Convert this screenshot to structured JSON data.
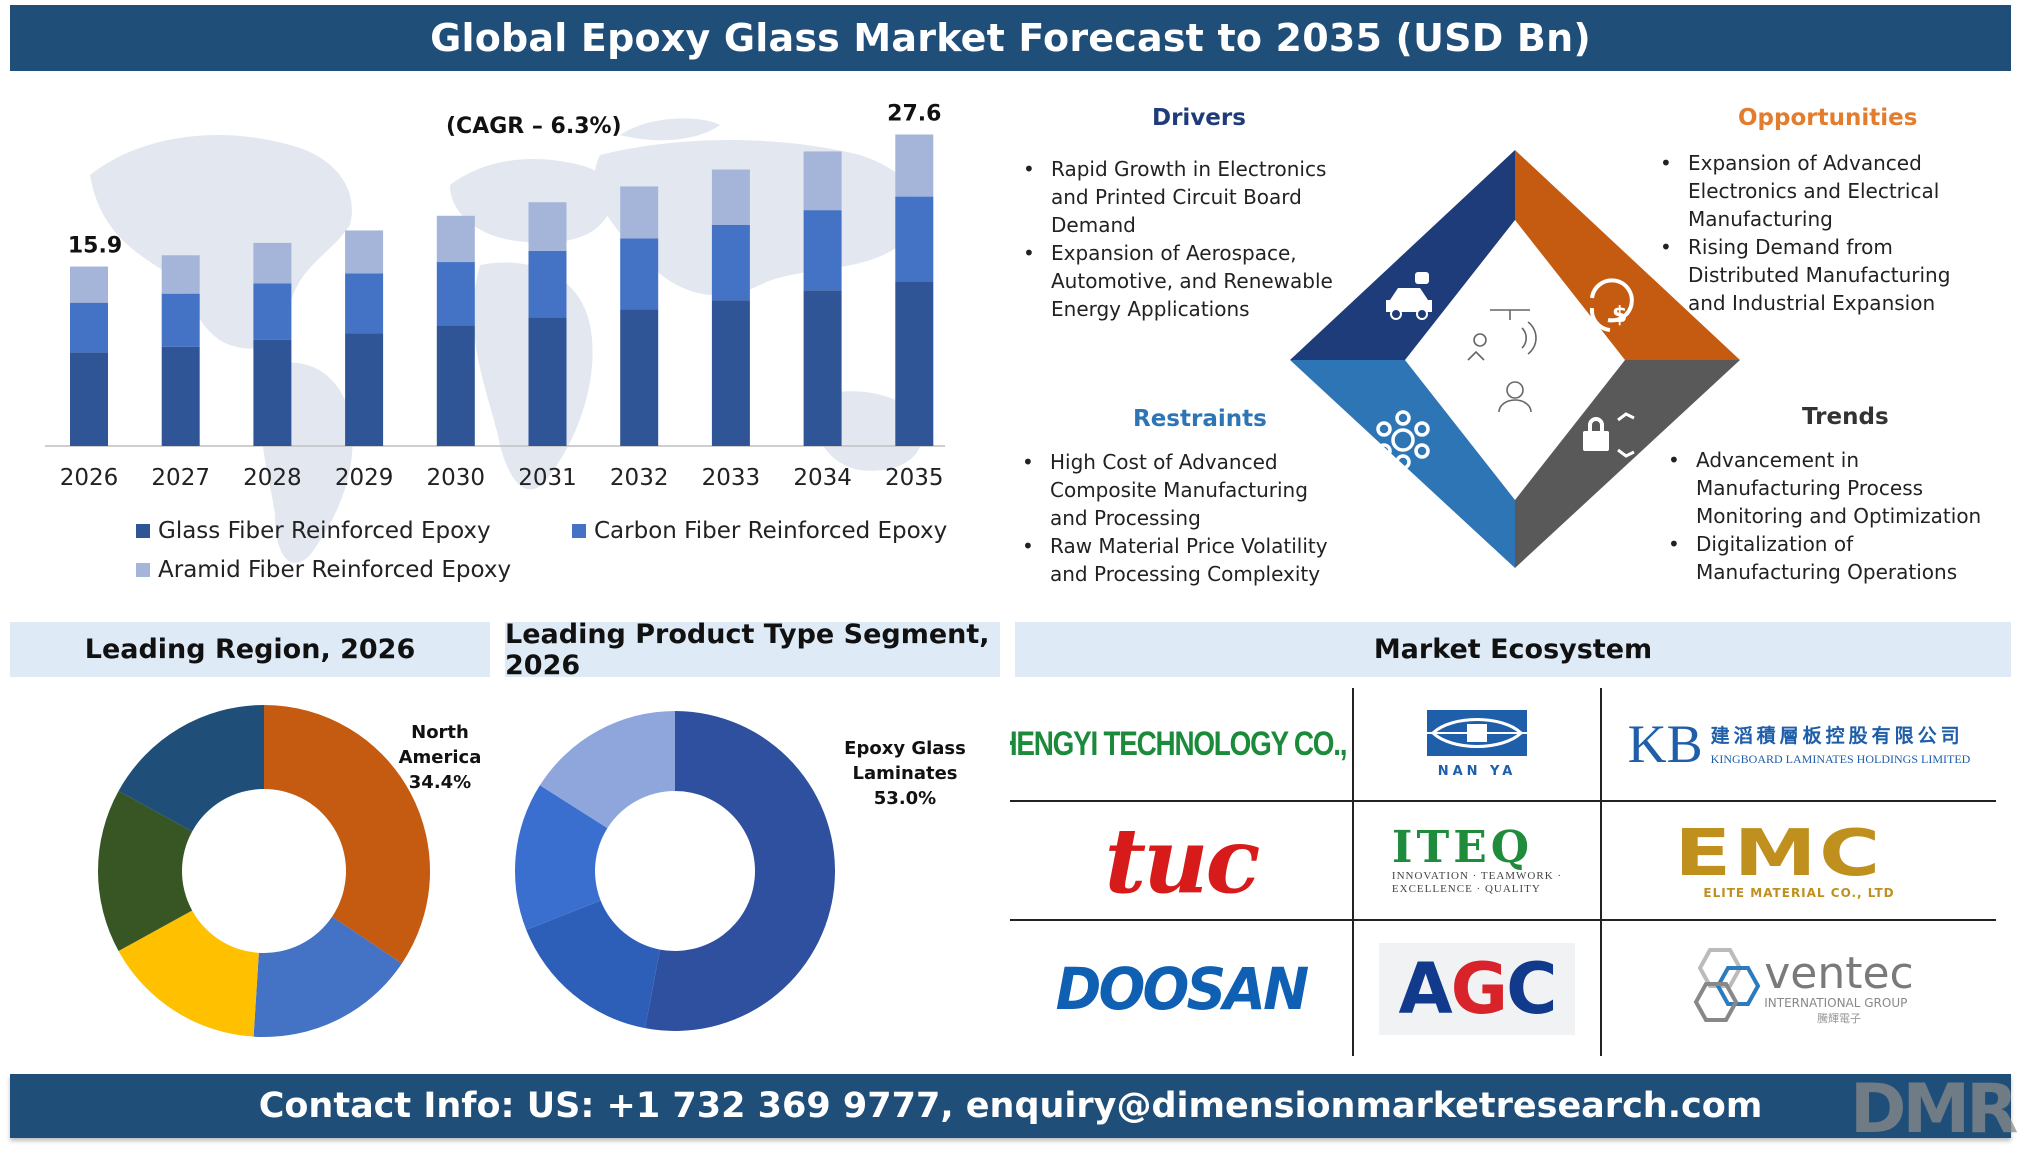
{
  "header": {
    "title": "Global Epoxy Glass Market Forecast to 2035 (USD Bn)"
  },
  "footer": {
    "contact": "Contact Info: US: +1 732 369 9777, enquiry@dimensionmarketresearch.com"
  },
  "colors": {
    "header_bg": "#1f4e79",
    "glass_fiber": "#2f5597",
    "carbon_fiber": "#4472c4",
    "aramid_fiber": "#a5b4d9",
    "drivers": "#1f3c7a",
    "opportunities": "#c55a11",
    "restraints": "#2e75b6",
    "trends": "#595959"
  },
  "chart_data": [
    {
      "type": "bar",
      "stacked": true,
      "annotation": "(CAGR – 6.3%)",
      "categories": [
        "2026",
        "2027",
        "2028",
        "2029",
        "2030",
        "2031",
        "2032",
        "2033",
        "2034",
        "2035"
      ],
      "series": [
        {
          "name": "Glass Fiber Reinforced Epoxy",
          "values": [
            8.3,
            8.8,
            9.4,
            10.0,
            10.7,
            11.4,
            12.1,
            12.9,
            13.8,
            14.6
          ]
        },
        {
          "name": "Carbon Fiber Reinforced Epoxy",
          "values": [
            4.4,
            4.7,
            5.0,
            5.3,
            5.6,
            5.9,
            6.3,
            6.7,
            7.1,
            7.5
          ]
        },
        {
          "name": "Aramid Fiber Reinforced Epoxy",
          "values": [
            3.2,
            3.4,
            3.6,
            3.8,
            4.1,
            4.3,
            4.6,
            4.9,
            5.2,
            5.5
          ]
        }
      ],
      "totals_labels": {
        "2026": "15.9",
        "2035": "27.6"
      },
      "ylim": [
        0,
        28
      ],
      "grid": false,
      "legend": "bottom"
    },
    {
      "type": "pie",
      "donut": true,
      "title": "Leading Region, 2026",
      "highlight_label": "North America 34.4%",
      "slices": [
        {
          "value": 34.4,
          "color": "#c55a11"
        },
        {
          "value": 16.6,
          "color": "#4472c4"
        },
        {
          "value": 16.0,
          "color": "#ffc000"
        },
        {
          "value": 16.0,
          "color": "#375623"
        },
        {
          "value": 17.0,
          "color": "#1f4e79"
        }
      ]
    },
    {
      "type": "pie",
      "donut": true,
      "title": "Leading Product Type Segment, 2026",
      "highlight_label": "Epoxy Glass Laminates 53.0%",
      "slices": [
        {
          "value": 53.0,
          "color": "#2f4f9f"
        },
        {
          "value": 16.0,
          "color": "#2e5fb8"
        },
        {
          "value": 15.0,
          "color": "#3a6fd0"
        },
        {
          "value": 16.0,
          "color": "#8fa6dc"
        }
      ]
    }
  ],
  "chart_labels": {
    "label_first": "15.9",
    "label_last": "27.6",
    "cagr": "(CAGR – 6.3%)",
    "legend": [
      "Glass Fiber Reinforced Epoxy",
      "Carbon Fiber Reinforced Epoxy",
      "Aramid Fiber Reinforced Epoxy"
    ]
  },
  "drot": {
    "drivers": {
      "title": "Drivers",
      "items": [
        "Rapid Growth in Electronics and Printed Circuit Board Demand",
        "Expansion of Aerospace, Automotive, and Renewable Energy Applications"
      ]
    },
    "opportunities": {
      "title": "Opportunities",
      "items": [
        "Expansion of Advanced Electronics and Electrical Manufacturing",
        "Rising Demand from Distributed Manufacturing and Industrial Expansion"
      ]
    },
    "restraints": {
      "title": "Restraints",
      "items": [
        "High Cost of Advanced Composite Manufacturing and Processing",
        "Raw Material Price Volatility and Processing Complexity"
      ]
    },
    "trends": {
      "title": "Trends",
      "items": [
        "Advancement in Manufacturing Process Monitoring and Optimization",
        "Digitalization of Manufacturing Operations"
      ]
    },
    "icons": [
      "robot-car-icon",
      "dollar-cycle-icon",
      "molecule-gear-icon",
      "lock-network-icon",
      "lab-person-icon"
    ]
  },
  "sections": {
    "region": "Leading Region, 2026",
    "product": "Leading Product Type Segment, 2026",
    "ecosystem": "Market Ecosystem"
  },
  "donut_labels": {
    "region": [
      "North",
      "America",
      "34.4%"
    ],
    "product": [
      "Epoxy Glass",
      "Laminates",
      "53.0%"
    ]
  },
  "ecosystem": {
    "shengyi": "SHENGYI TECHNOLOGY CO., LTD",
    "nanya": "NAN YA",
    "kb_mark": "KB",
    "kb_cn": "建滔積層板控股有限公司",
    "kb_en": "KINGBOARD LAMINATES HOLDINGS LIMITED",
    "tuc": "tuc",
    "iteq": "ITEQ",
    "iteq_tag1": "INNOVATION · TEAMWORK ·",
    "iteq_tag2": "EXCELLENCE · QUALITY",
    "emc": "EMC",
    "emc_sub": "ELITE MATERIAL CO., LTD",
    "doosan": "DOOSAN",
    "agc_a": "A",
    "agc_g": "G",
    "agc_c": "C",
    "ventec": "ventec",
    "ventec_sub": "INTERNATIONAL GROUP",
    "ventec_cn": "騰輝電子"
  },
  "watermark": "DMR"
}
